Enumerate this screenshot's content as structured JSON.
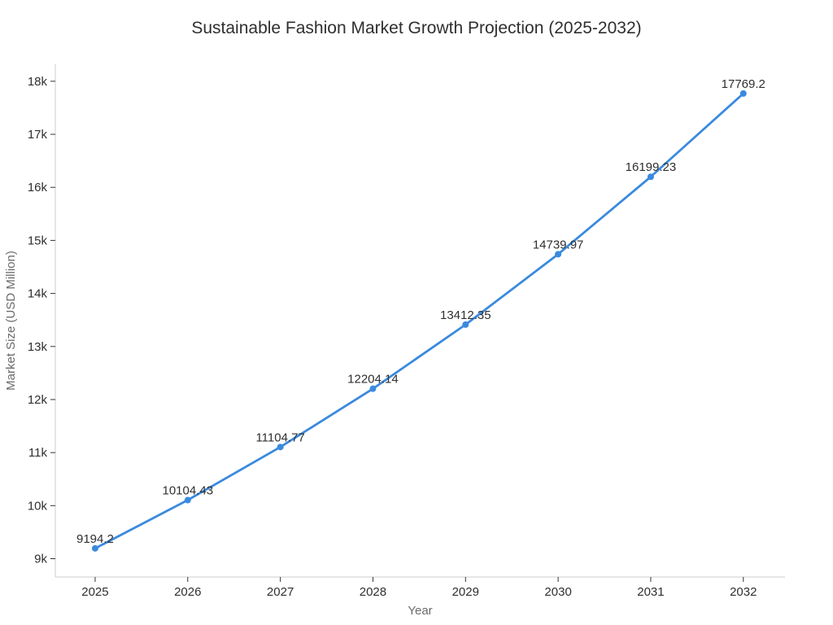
{
  "chart_data": {
    "type": "line",
    "title": "Sustainable Fashion Market Growth Projection (2025-2032)",
    "xlabel": "Year",
    "ylabel": "Market Size (USD Million)",
    "x": [
      2025,
      2026,
      2027,
      2028,
      2029,
      2030,
      2031,
      2032
    ],
    "values": [
      9194.2,
      10104.43,
      11104.77,
      12204.14,
      13412.35,
      14739.97,
      16199.23,
      17769.2
    ],
    "point_labels": [
      "9194.2",
      "10104.43",
      "11104.77",
      "12204.14",
      "13412.35",
      "14739.97",
      "16199.23",
      "17769.2"
    ],
    "x_tick_labels": [
      "2025",
      "2026",
      "2027",
      "2028",
      "2029",
      "2030",
      "2031",
      "2032"
    ],
    "y_ticks": [
      {
        "value": 9000,
        "label": "9k"
      },
      {
        "value": 10000,
        "label": "10k"
      },
      {
        "value": 11000,
        "label": "11k"
      },
      {
        "value": 12000,
        "label": "12k"
      },
      {
        "value": 13000,
        "label": "13k"
      },
      {
        "value": 14000,
        "label": "14k"
      },
      {
        "value": 15000,
        "label": "15k"
      },
      {
        "value": 16000,
        "label": "16k"
      },
      {
        "value": 17000,
        "label": "17k"
      },
      {
        "value": 18000,
        "label": "18k"
      }
    ],
    "xlim": [
      2024.57,
      2032.45
    ],
    "ylim": [
      8655,
      18320
    ],
    "grid": false,
    "legend": false,
    "marker": "circle",
    "style": {
      "line_color": "#3a8ade",
      "marker_color": "#3a8ade",
      "axis_line_color": "#cccccc",
      "tick_mark_color": "#333333",
      "tick_label_color": "#2f2f2f",
      "data_label_color": "#2f2f2f",
      "axis_title_color": "#6b6b6b",
      "title_color": "#2f2f2f",
      "background": "#ffffff"
    }
  }
}
